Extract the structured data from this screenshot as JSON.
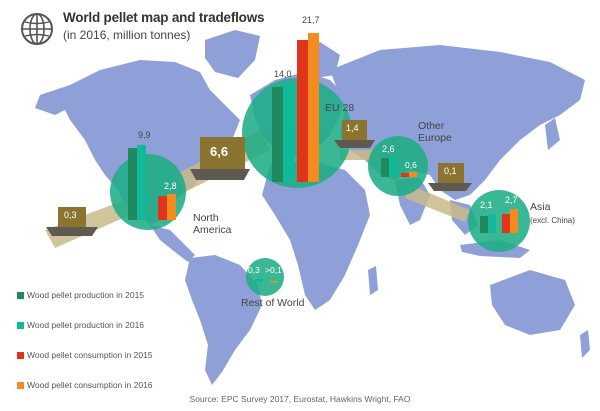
{
  "header": {
    "title": "World pellet map and tradeflows",
    "subtitle": "(in 2016, million tonnes)",
    "icon": "globe-icon"
  },
  "colors": {
    "production_2015": "#1e8a5e",
    "production_2016": "#12b89a",
    "consumption_2015": "#e0341b",
    "consumption_2016": "#f58b1f",
    "ocean": "#ffffff",
    "land": "#8fa0d8",
    "region_circle": "#1fae86",
    "ship": "#5e5a52",
    "crate": "#8a7430",
    "flow": "#c9b98a"
  },
  "regions": [
    {
      "name": "North America",
      "production_2015": "9,9",
      "production_2016": "",
      "consumption_2015": "2,8",
      "consumption_2016": ""
    },
    {
      "name": "EU 28",
      "production_2015": "14,0",
      "production_2016": "",
      "consumption_2015": "",
      "consumption_2016": "21,7"
    },
    {
      "name": "Other Europe",
      "production_2015": "2,6",
      "production_2016": "",
      "consumption_2015": "0,6",
      "consumption_2016": ""
    },
    {
      "name": "Asia",
      "note": "(excl. China)",
      "production_2015": "2,1",
      "production_2016": "",
      "consumption_2015": "",
      "consumption_2016": "2,7"
    },
    {
      "name": "Rest of World",
      "production_2015": "0,3",
      "production_2016": "",
      "consumption_2015": "",
      "consumption_2016": ">0,1"
    }
  ],
  "tradeflows": [
    {
      "value": "0,3"
    },
    {
      "value": "6,6"
    },
    {
      "value": "1,4"
    },
    {
      "value": "0,1"
    }
  ],
  "legend": [
    {
      "label": "Wood pellet production in 2015",
      "color_key": "production_2015"
    },
    {
      "label": "Wood pellet production in 2016",
      "color_key": "production_2016"
    },
    {
      "label": "Wood pellet consumption in 2015",
      "color_key": "consumption_2015"
    },
    {
      "label": "Wood pellet consumption in 2016",
      "color_key": "consumption_2016"
    }
  ],
  "source": "Source: EPC Survey 2017, Eurostat, Hawkins Wright, FAO"
}
